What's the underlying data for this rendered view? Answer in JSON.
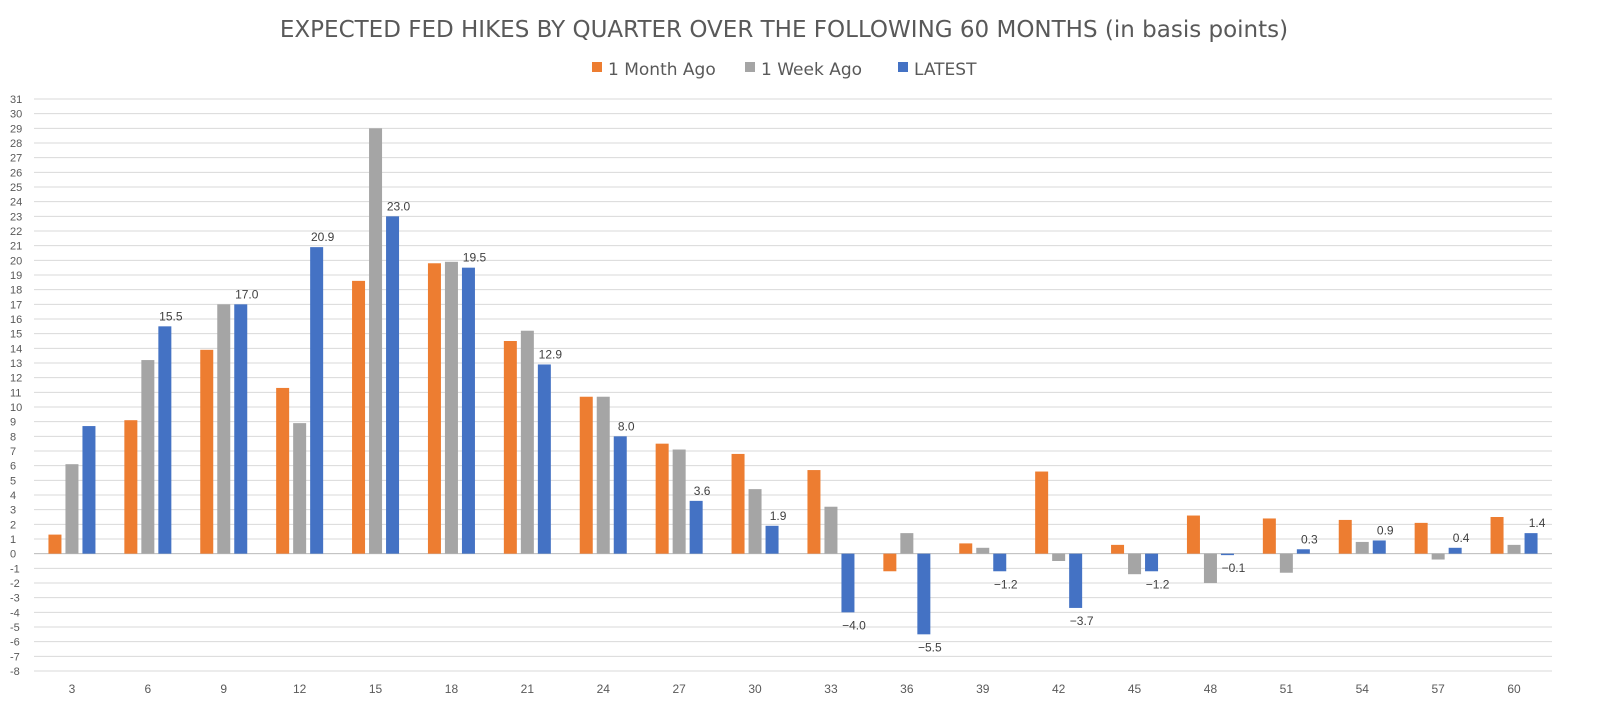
{
  "chart_data": {
    "type": "bar",
    "title": "EXPECTED FED HIKES BY QUARTER OVER THE FOLLOWING 60 MONTHS (in basis points)",
    "xlabel": "",
    "ylabel": "",
    "ylim": [
      -8,
      31
    ],
    "grid": true,
    "legend_position": "top",
    "categories": [
      "3",
      "6",
      "9",
      "12",
      "15",
      "18",
      "21",
      "24",
      "27",
      "30",
      "33",
      "36",
      "39",
      "42",
      "45",
      "48",
      "51",
      "54",
      "57",
      "60"
    ],
    "series": [
      {
        "name": "1 Month Ago",
        "color": "#ED7D31",
        "values": [
          1.3,
          9.1,
          13.9,
          11.3,
          18.6,
          19.8,
          14.5,
          10.7,
          7.5,
          6.8,
          5.7,
          -1.2,
          0.7,
          5.6,
          0.6,
          2.6,
          2.4,
          2.3,
          2.1,
          2.5
        ]
      },
      {
        "name": "1 Week Ago",
        "color": "#A5A5A5",
        "values": [
          6.1,
          13.2,
          17.0,
          8.9,
          29.0,
          19.9,
          15.2,
          10.7,
          7.1,
          4.4,
          3.2,
          1.4,
          0.4,
          -0.5,
          -1.4,
          -2.0,
          -1.3,
          0.8,
          -0.4,
          0.6
        ]
      },
      {
        "name": "LATEST",
        "color": "#4472C4",
        "values": [
          8.7,
          15.5,
          17.0,
          20.9,
          23.0,
          19.5,
          12.9,
          8.0,
          3.6,
          1.9,
          -4.0,
          -5.5,
          -1.2,
          -3.7,
          -1.2,
          -0.1,
          0.3,
          0.9,
          0.4,
          1.4
        ]
      }
    ],
    "data_labels": {
      "series": "LATEST",
      "values": [
        "",
        "15.5",
        "17.0",
        "20.9",
        "23.0",
        "19.5",
        "12.9",
        "8.0",
        "3.6",
        "1.9",
        "-4.0",
        "-5.5",
        "-1.2",
        "-3.7",
        "-1.2",
        "-0.1",
        "0.3",
        "0.9",
        "0.4",
        "1.4"
      ]
    },
    "yticks": [
      "31",
      "30",
      "29",
      "28",
      "27",
      "26",
      "25",
      "24",
      "23",
      "22",
      "21",
      "20",
      "19",
      "18",
      "17",
      "16",
      "15",
      "14",
      "13",
      "12",
      "11",
      "10",
      "9",
      "8",
      "7",
      "6",
      "5",
      "4",
      "3",
      "2",
      "1",
      "0",
      "-1",
      "-2",
      "-3",
      "-4",
      "-5",
      "-6",
      "-7",
      "-8"
    ]
  }
}
